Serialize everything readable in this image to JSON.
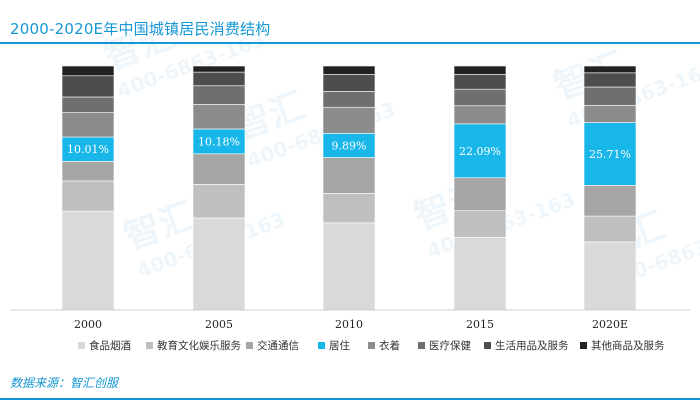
{
  "title": "2000-2020E年中国城镇居民消费结构",
  "source": "数据来源：智汇创服",
  "watermark": {
    "brand": "智汇",
    "phone": "400-6863-163"
  },
  "chart_data": {
    "type": "bar",
    "stacked": true,
    "normalized_to_percent": true,
    "categories": [
      "2000",
      "2005",
      "2010",
      "2015",
      "2020E"
    ],
    "ylim": [
      0,
      100
    ],
    "legend_position": "bottom",
    "grid": false,
    "series": [
      {
        "name": "食品烟酒",
        "color": "#d9d9d9",
        "values": [
          40.5,
          37.7,
          35.7,
          29.7,
          27.9
        ]
      },
      {
        "name": "教育文化娱乐服务",
        "color": "#bfbfbf",
        "values": [
          12.4,
          13.8,
          12.1,
          11.0,
          10.6
        ]
      },
      {
        "name": "交通通信",
        "color": "#a6a6a6",
        "values": [
          8.0,
          12.5,
          14.7,
          13.5,
          12.6
        ]
      },
      {
        "name": "居住",
        "color": "#19b6ea",
        "values": [
          10.01,
          10.18,
          9.89,
          22.09,
          25.71
        ],
        "labels": [
          "10.01%",
          "10.18%",
          "9.89%",
          "22.09%",
          "25.71%"
        ]
      },
      {
        "name": "衣着",
        "color": "#8c8c8c",
        "values": [
          10.0,
          10.1,
          10.7,
          7.4,
          7.1
        ]
      },
      {
        "name": "医疗保健",
        "color": "#6f6f6f",
        "values": [
          6.4,
          7.6,
          6.5,
          6.8,
          7.5
        ]
      },
      {
        "name": "生活用品及服务",
        "color": "#4d4d4d",
        "values": [
          8.7,
          5.6,
          7.0,
          6.1,
          5.8
        ]
      },
      {
        "name": "其他商品及服务",
        "color": "#222222",
        "values": [
          4.0,
          2.5,
          3.4,
          3.4,
          2.8
        ]
      }
    ]
  }
}
